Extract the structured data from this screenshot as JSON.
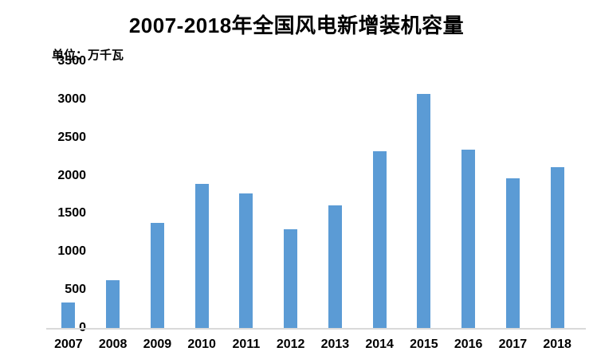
{
  "chart": {
    "title": "2007-2018年全国风电新增装机容量",
    "unit_label": "单位：万千瓦"
  },
  "chart_data": {
    "type": "bar",
    "title": "2007-2018年全国风电新增装机容量",
    "categories": [
      "2007",
      "2008",
      "2009",
      "2010",
      "2011",
      "2012",
      "2013",
      "2014",
      "2015",
      "2016",
      "2017",
      "2018"
    ],
    "values": [
      330,
      625,
      1380,
      1893,
      1763,
      1296,
      1610,
      2320,
      3075,
      2337,
      1966,
      2114
    ],
    "xlabel": "",
    "ylabel": "单位：万千瓦",
    "ylim": [
      0,
      3500
    ],
    "yticks": [
      0,
      500,
      1000,
      1500,
      2000,
      2500,
      3000,
      3500
    ],
    "grid": false,
    "legend": false,
    "bar_color": "#5b9bd5",
    "axis_line_color": "#d9d9d9",
    "text_color": "#000000",
    "background_color": "#ffffff"
  }
}
